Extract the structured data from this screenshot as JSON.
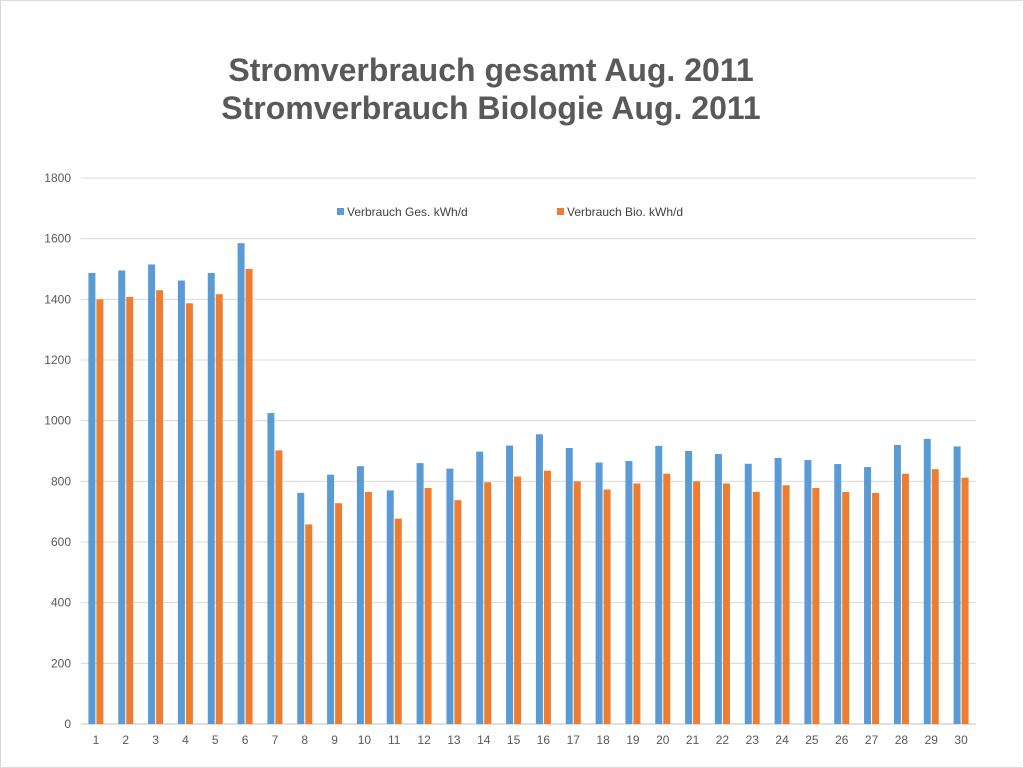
{
  "chart_data": {
    "type": "bar",
    "title": [
      "Stromverbrauch gesamt Aug. 2011",
      "Stromverbrauch Biologie Aug. 2011"
    ],
    "xlabel": "",
    "ylabel": "",
    "ylim": [
      0,
      1800
    ],
    "yticks": [
      0,
      200,
      400,
      600,
      800,
      1000,
      1200,
      1400,
      1600,
      1800
    ],
    "grid": true,
    "legend_position": "top",
    "categories": [
      "1",
      "2",
      "3",
      "4",
      "5",
      "6",
      "7",
      "8",
      "9",
      "10",
      "11",
      "12",
      "13",
      "14",
      "15",
      "16",
      "17",
      "18",
      "19",
      "20",
      "21",
      "22",
      "23",
      "24",
      "25",
      "26",
      "27",
      "28",
      "29",
      "30"
    ],
    "series": [
      {
        "name": "Verbrauch Ges. kWh/d",
        "color": "#5b9bd5",
        "values": [
          1487,
          1495,
          1515,
          1462,
          1487,
          1585,
          1025,
          762,
          822,
          850,
          770,
          860,
          842,
          898,
          918,
          955,
          910,
          862,
          867,
          917,
          900,
          890,
          858,
          877,
          870,
          857,
          847,
          920,
          940,
          915
        ]
      },
      {
        "name": "Verbrauch Bio. kWh/d",
        "color": "#ed7d31",
        "values": [
          1400,
          1408,
          1430,
          1387,
          1417,
          1500,
          902,
          658,
          728,
          765,
          677,
          778,
          738,
          797,
          816,
          835,
          800,
          773,
          793,
          825,
          800,
          793,
          765,
          787,
          778,
          765,
          762,
          825,
          840,
          812
        ]
      }
    ]
  }
}
